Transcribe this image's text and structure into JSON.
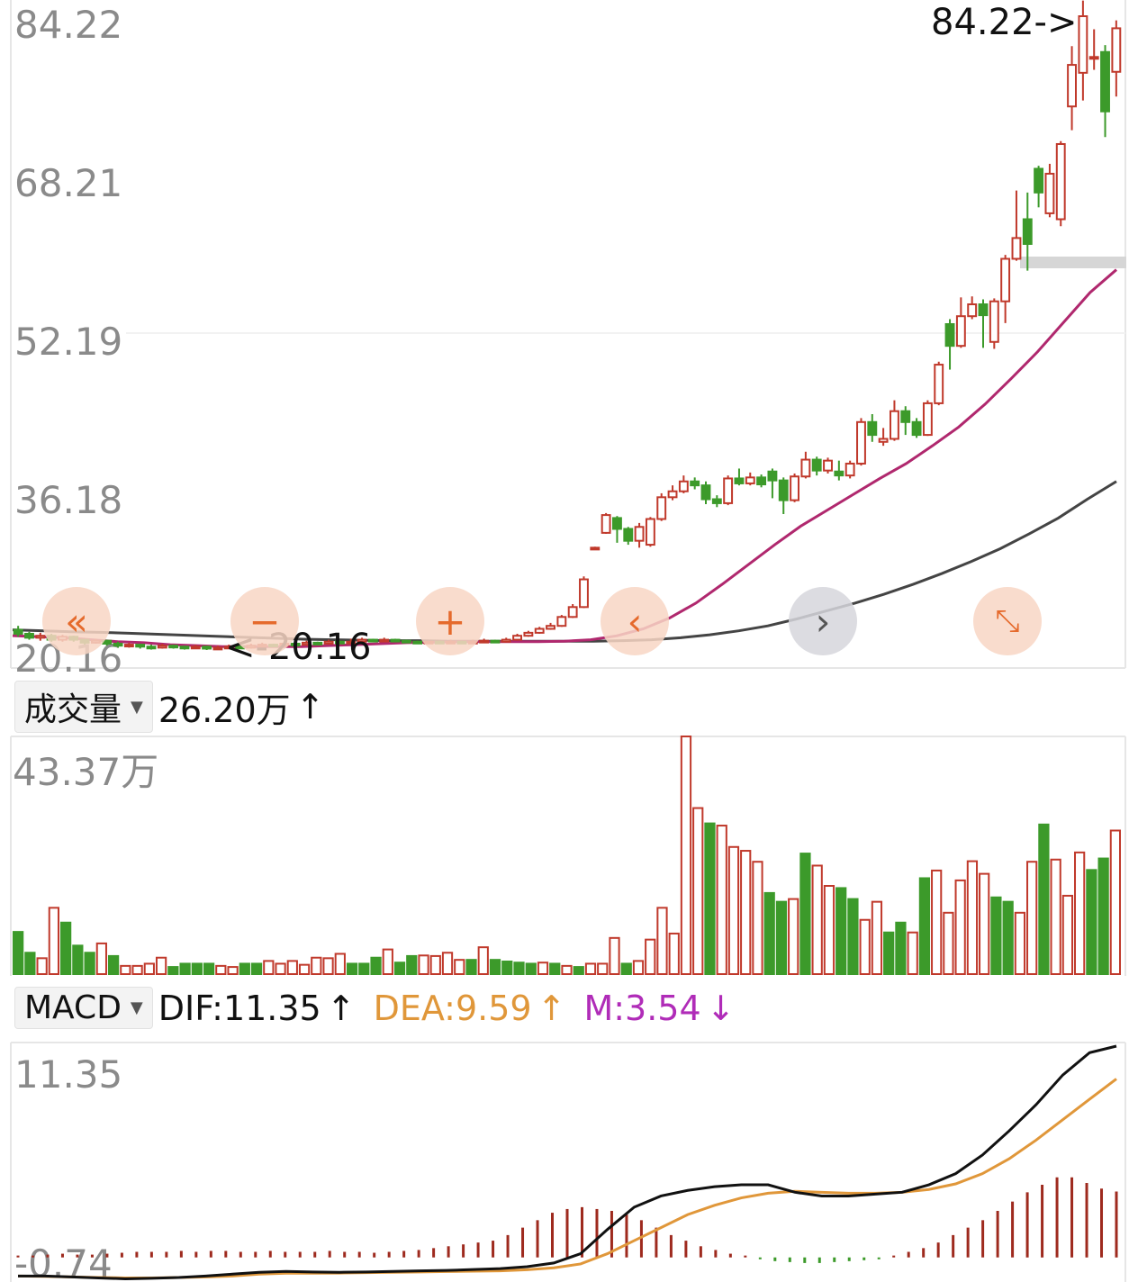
{
  "price_panel": {
    "y_labels": [
      "84.22",
      "68.21",
      "52.19",
      "36.18",
      "20.16"
    ],
    "high_marker": "84.22->",
    "low_marker": "<-20.16"
  },
  "volume_header": {
    "selector": "成交量",
    "value": "26.20万",
    "arrow": "↑"
  },
  "volume_panel": {
    "max_label": "43.37万"
  },
  "macd_header": {
    "selector": "MACD",
    "dif": "DIF:11.35",
    "dif_arrow": "↑",
    "dea": "DEA:9.59",
    "dea_arrow": "↑",
    "m": "M:3.54",
    "m_arrow": "↓"
  },
  "macd_panel": {
    "top_label": "11.35",
    "bottom_label": "-0.74"
  },
  "controls": {
    "rewind": "«",
    "zoom_out": "−",
    "zoom_in": "+",
    "prev": "‹",
    "next": "›",
    "fullscreen": "⤡"
  },
  "colors": {
    "up": "#c0392b",
    "down": "#3c9a2a",
    "ma_fast": "#b0286e",
    "ma_slow": "#444444",
    "dif": "#111111",
    "dea": "#e0973a",
    "macd_up": "#9e2a1e",
    "macd_down": "#3c9a2a"
  },
  "chart_data": [
    {
      "type": "candlestick",
      "title": "",
      "ylim": [
        20.16,
        84.22
      ],
      "y_ticks": [
        84.22,
        68.21,
        52.19,
        36.18,
        20.16
      ],
      "candles": [
        [
          22.2,
          21.8,
          22.6,
          21.5
        ],
        [
          21.8,
          21.4,
          22.0,
          21.2
        ],
        [
          21.4,
          21.6,
          21.9,
          21.1
        ],
        [
          21.6,
          21.2,
          21.8,
          21.0
        ],
        [
          21.2,
          21.5,
          21.7,
          21.0
        ],
        [
          21.5,
          21.2,
          21.6,
          21.0
        ],
        [
          21.2,
          20.9,
          21.3,
          20.7
        ],
        [
          20.9,
          21.1,
          21.3,
          20.8
        ],
        [
          21.1,
          20.8,
          21.2,
          20.6
        ],
        [
          20.8,
          20.6,
          21.0,
          20.4
        ],
        [
          20.6,
          20.7,
          20.9,
          20.4
        ],
        [
          20.7,
          20.5,
          20.8,
          20.3
        ],
        [
          20.5,
          20.4,
          20.7,
          20.2
        ],
        [
          20.4,
          20.6,
          20.8,
          20.3
        ],
        [
          20.6,
          20.5,
          20.7,
          20.3
        ],
        [
          20.5,
          20.4,
          20.6,
          20.2
        ],
        [
          20.4,
          20.5,
          20.7,
          20.3
        ],
        [
          20.5,
          20.3,
          20.6,
          20.16
        ],
        [
          20.3,
          20.4,
          20.6,
          20.2
        ],
        [
          20.4,
          20.5,
          20.7,
          20.3
        ],
        [
          20.5,
          20.4,
          20.6,
          20.3
        ],
        [
          20.4,
          20.6,
          20.8,
          20.3
        ],
        [
          20.6,
          20.7,
          20.9,
          20.5
        ],
        [
          20.7,
          20.6,
          20.8,
          20.5
        ],
        [
          20.6,
          20.8,
          21.0,
          20.5
        ],
        [
          20.8,
          20.7,
          20.9,
          20.6
        ],
        [
          20.7,
          20.9,
          21.1,
          20.6
        ],
        [
          20.9,
          20.8,
          21.0,
          20.7
        ],
        [
          20.8,
          21.0,
          21.2,
          20.7
        ],
        [
          21.0,
          20.9,
          21.1,
          20.8
        ],
        [
          20.9,
          21.0,
          21.3,
          20.8
        ],
        [
          21.0,
          21.2,
          21.4,
          20.9
        ],
        [
          21.2,
          21.1,
          21.3,
          21.0
        ],
        [
          21.1,
          21.2,
          21.4,
          21.0
        ],
        [
          21.2,
          21.1,
          21.3,
          21.0
        ],
        [
          21.1,
          21.0,
          21.2,
          20.9
        ],
        [
          21.0,
          20.9,
          21.1,
          20.8
        ],
        [
          20.9,
          21.0,
          21.1,
          20.8
        ],
        [
          21.0,
          20.9,
          21.1,
          20.8
        ],
        [
          20.9,
          21.0,
          21.2,
          20.8
        ],
        [
          21.0,
          20.9,
          21.1,
          20.8
        ],
        [
          20.9,
          21.0,
          21.2,
          20.8
        ],
        [
          21.0,
          21.1,
          21.3,
          20.9
        ],
        [
          21.1,
          21.0,
          21.2,
          20.9
        ],
        [
          21.0,
          21.2,
          21.4,
          20.9
        ],
        [
          21.2,
          21.6,
          21.8,
          21.1
        ],
        [
          21.6,
          21.9,
          22.1,
          21.5
        ],
        [
          21.9,
          22.3,
          22.5,
          21.8
        ],
        [
          22.3,
          22.6,
          22.9,
          22.2
        ],
        [
          22.6,
          23.5,
          23.7,
          22.5
        ],
        [
          23.5,
          24.5,
          24.8,
          23.4
        ],
        [
          24.5,
          27.3,
          27.6,
          24.4
        ],
        [
          30.5,
          30.5,
          30.6,
          30.4
        ],
        [
          32.0,
          33.8,
          34.0,
          31.9
        ],
        [
          33.5,
          32.4,
          33.7,
          31.0
        ],
        [
          32.4,
          31.2,
          32.6,
          30.8
        ],
        [
          31.2,
          32.6,
          33.0,
          30.5
        ],
        [
          30.8,
          33.4,
          33.6,
          30.6
        ],
        [
          33.4,
          35.6,
          36.0,
          33.2
        ],
        [
          35.6,
          36.2,
          36.8,
          35.3
        ],
        [
          36.2,
          37.2,
          37.8,
          36.0
        ],
        [
          37.2,
          36.8,
          37.6,
          36.4
        ],
        [
          36.8,
          35.4,
          37.2,
          34.9
        ],
        [
          35.4,
          35.0,
          35.8,
          34.6
        ],
        [
          35.0,
          37.5,
          37.8,
          34.8
        ],
        [
          37.5,
          37.0,
          38.5,
          36.8
        ],
        [
          37.0,
          37.6,
          38.1,
          36.8
        ],
        [
          37.6,
          36.9,
          37.9,
          36.6
        ],
        [
          38.2,
          37.3,
          38.5,
          35.5
        ],
        [
          37.3,
          35.3,
          37.6,
          33.9
        ],
        [
          35.3,
          37.7,
          38.0,
          35.1
        ],
        [
          37.7,
          39.4,
          40.2,
          37.5
        ],
        [
          39.4,
          38.3,
          39.7,
          37.8
        ],
        [
          38.3,
          39.3,
          39.6,
          38.0
        ],
        [
          38.2,
          37.8,
          39.3,
          37.3
        ],
        [
          37.8,
          39.0,
          39.3,
          37.5
        ],
        [
          39.0,
          43.2,
          43.6,
          38.8
        ],
        [
          43.2,
          41.9,
          44.0,
          41.2
        ],
        [
          41.2,
          41.5,
          42.6,
          40.8
        ],
        [
          41.5,
          44.3,
          45.4,
          41.3
        ],
        [
          44.3,
          43.2,
          44.8,
          41.9
        ],
        [
          43.2,
          41.9,
          43.6,
          41.6
        ],
        [
          41.9,
          45.1,
          45.4,
          41.8
        ],
        [
          45.1,
          49.0,
          49.3,
          44.9
        ],
        [
          53.1,
          50.9,
          53.6,
          48.5
        ],
        [
          50.9,
          53.9,
          55.8,
          50.7
        ],
        [
          53.9,
          55.1,
          55.9,
          53.6
        ],
        [
          55.1,
          54.0,
          55.6,
          50.7
        ],
        [
          51.3,
          55.4,
          55.7,
          50.6
        ],
        [
          55.4,
          59.7,
          60.1,
          53.2
        ],
        [
          59.7,
          61.8,
          66.6,
          59.5
        ],
        [
          63.7,
          61.2,
          66.4,
          58.5
        ],
        [
          68.8,
          66.4,
          69.1,
          64.9
        ],
        [
          64.3,
          68.3,
          69.3,
          63.9
        ],
        [
          63.7,
          71.3,
          71.6,
          63.0
        ],
        [
          75.1,
          79.3,
          81.2,
          72.7
        ],
        [
          78.5,
          84.22,
          85.8,
          75.7
        ],
        [
          80.1,
          80.1,
          82.9,
          78.8
        ],
        [
          80.6,
          74.6,
          81.3,
          72.0
        ],
        [
          78.6,
          83.0,
          83.8,
          76.1
        ]
      ],
      "ma_fast": [
        21.6,
        21.5,
        21.4,
        21.2,
        21.0,
        20.9,
        20.7,
        20.6,
        20.5,
        20.5,
        20.5,
        20.5,
        20.6,
        20.7,
        20.8,
        20.9,
        20.95,
        21.0,
        21.0,
        21.0,
        21.0,
        21.05,
        21.2,
        21.6,
        22.3,
        23.4,
        24.9,
        26.8,
        28.8,
        30.8,
        32.7,
        34.3,
        35.9,
        37.5,
        39.0,
        40.8,
        42.7,
        45.0,
        47.6,
        50.3,
        53.3,
        56.3,
        58.6
      ],
      "ma_slow": [
        22.2,
        22.1,
        22.0,
        21.95,
        21.85,
        21.75,
        21.65,
        21.55,
        21.45,
        21.35,
        21.25,
        21.2,
        21.15,
        21.1,
        21.1,
        21.05,
        21.05,
        21.05,
        21.05,
        21.05,
        21.05,
        21.1,
        21.2,
        21.4,
        21.7,
        22.1,
        22.6,
        23.3,
        24.1,
        24.9,
        25.8,
        26.8,
        27.9,
        29.1,
        30.4,
        31.9,
        33.5,
        35.4,
        37.2
      ],
      "high_label": "84.22",
      "low_label": "20.16"
    },
    {
      "type": "bar",
      "title": "成交量",
      "ylim": [
        0,
        43.37
      ],
      "units": "万",
      "values": [
        [
          7.7,
          0
        ],
        [
          3.9,
          0
        ],
        [
          2.9,
          1
        ],
        [
          12.1,
          1
        ],
        [
          9.4,
          0
        ],
        [
          5.2,
          0
        ],
        [
          3.9,
          0
        ],
        [
          5.6,
          1
        ],
        [
          3.3,
          0
        ],
        [
          1.5,
          1
        ],
        [
          1.5,
          1
        ],
        [
          1.9,
          1
        ],
        [
          3.0,
          1
        ],
        [
          1.3,
          0
        ],
        [
          1.9,
          0
        ],
        [
          1.9,
          0
        ],
        [
          1.9,
          0
        ],
        [
          1.5,
          1
        ],
        [
          1.3,
          1
        ],
        [
          1.9,
          0
        ],
        [
          1.9,
          0
        ],
        [
          2.4,
          1
        ],
        [
          1.9,
          1
        ],
        [
          2.4,
          1
        ],
        [
          1.7,
          1
        ],
        [
          3.0,
          1
        ],
        [
          2.9,
          1
        ],
        [
          3.7,
          1
        ],
        [
          1.9,
          0
        ],
        [
          1.9,
          0
        ],
        [
          3.0,
          0
        ],
        [
          4.5,
          1
        ],
        [
          2.1,
          0
        ],
        [
          3.3,
          0
        ],
        [
          3.4,
          1
        ],
        [
          3.3,
          1
        ],
        [
          3.9,
          1
        ],
        [
          2.6,
          1
        ],
        [
          2.6,
          0
        ],
        [
          4.9,
          1
        ],
        [
          2.6,
          0
        ],
        [
          2.3,
          0
        ],
        [
          2.1,
          0
        ],
        [
          1.9,
          0
        ],
        [
          2.1,
          1
        ],
        [
          1.9,
          0
        ],
        [
          1.5,
          1
        ],
        [
          1.3,
          0
        ],
        [
          1.9,
          1
        ],
        [
          1.9,
          1
        ],
        [
          6.6,
          1
        ],
        [
          1.9,
          0
        ],
        [
          2.4,
          1
        ],
        [
          6.3,
          1
        ],
        [
          12.1,
          1
        ],
        [
          7.4,
          1
        ],
        [
          43.37,
          1
        ],
        [
          30.3,
          1
        ],
        [
          27.5,
          0
        ],
        [
          27.1,
          1
        ],
        [
          23.2,
          1
        ],
        [
          22.5,
          1
        ],
        [
          20.5,
          1
        ],
        [
          14.8,
          0
        ],
        [
          13.2,
          0
        ],
        [
          13.7,
          1
        ],
        [
          22.0,
          0
        ],
        [
          19.8,
          1
        ],
        [
          16.1,
          1
        ],
        [
          15.7,
          0
        ],
        [
          13.7,
          0
        ],
        [
          9.9,
          1
        ],
        [
          13.2,
          1
        ],
        [
          7.6,
          0
        ],
        [
          9.4,
          0
        ],
        [
          7.6,
          1
        ],
        [
          17.5,
          0
        ],
        [
          18.9,
          1
        ],
        [
          11.2,
          1
        ],
        [
          17.1,
          1
        ],
        [
          20.6,
          1
        ],
        [
          18.3,
          1
        ],
        [
          14.0,
          0
        ],
        [
          13.2,
          0
        ],
        [
          11.2,
          1
        ],
        [
          20.5,
          1
        ],
        [
          27.3,
          0
        ],
        [
          20.9,
          1
        ],
        [
          14.3,
          1
        ],
        [
          22.2,
          1
        ],
        [
          19.0,
          0
        ],
        [
          21.1,
          0
        ],
        [
          26.2,
          1
        ]
      ]
    },
    {
      "type": "line",
      "title": "MACD",
      "ylim": [
        -0.74,
        11.35
      ],
      "series": [
        {
          "name": "DIF",
          "values": [
            -1.0,
            -1.0,
            -1.05,
            -1.1,
            -1.15,
            -1.12,
            -1.08,
            -1.0,
            -0.9,
            -0.8,
            -0.75,
            -0.78,
            -0.8,
            -0.78,
            -0.75,
            -0.72,
            -0.7,
            -0.65,
            -0.6,
            -0.5,
            -0.3,
            0.2,
            1.5,
            2.7,
            3.3,
            3.6,
            3.8,
            3.9,
            3.9,
            3.5,
            3.3,
            3.3,
            3.4,
            3.5,
            3.9,
            4.5,
            5.5,
            6.8,
            8.2,
            9.8,
            11.0,
            11.35
          ]
        },
        {
          "name": "DEA",
          "values": [
            -1.0,
            -1.02,
            -1.05,
            -1.08,
            -1.1,
            -1.1,
            -1.08,
            -1.05,
            -1.0,
            -0.9,
            -0.85,
            -0.85,
            -0.84,
            -0.82,
            -0.8,
            -0.78,
            -0.76,
            -0.74,
            -0.72,
            -0.66,
            -0.56,
            -0.35,
            0.2,
            0.9,
            1.6,
            2.3,
            2.8,
            3.2,
            3.45,
            3.55,
            3.5,
            3.45,
            3.45,
            3.5,
            3.65,
            3.95,
            4.5,
            5.3,
            6.3,
            7.4,
            8.5,
            9.59
          ]
        },
        {
          "name": "M",
          "values": [
            0.1,
            0.1,
            0.15,
            0.2,
            0.15,
            0.15,
            0.2,
            0.25,
            0.3,
            0.3,
            0.3,
            0.35,
            0.3,
            0.35,
            0.35,
            0.3,
            0.3,
            0.35,
            0.3,
            0.3,
            0.3,
            0.35,
            0.3,
            0.3,
            0.25,
            0.3,
            0.35,
            0.4,
            0.5,
            0.6,
            0.7,
            0.8,
            0.9,
            1.2,
            1.6,
            2.0,
            2.4,
            2.6,
            2.7,
            2.6,
            2.5,
            2.3,
            2.0,
            1.6,
            1.2,
            0.9,
            0.6,
            0.4,
            0.2,
            0.1,
            -0.1,
            -0.2,
            -0.25,
            -0.3,
            -0.3,
            -0.25,
            -0.2,
            -0.15,
            -0.1,
            0.1,
            0.3,
            0.5,
            0.8,
            1.2,
            1.6,
            2.0,
            2.5,
            3.0,
            3.5,
            3.9,
            4.3,
            4.3,
            4.0,
            3.7,
            3.54
          ]
        }
      ]
    }
  ]
}
